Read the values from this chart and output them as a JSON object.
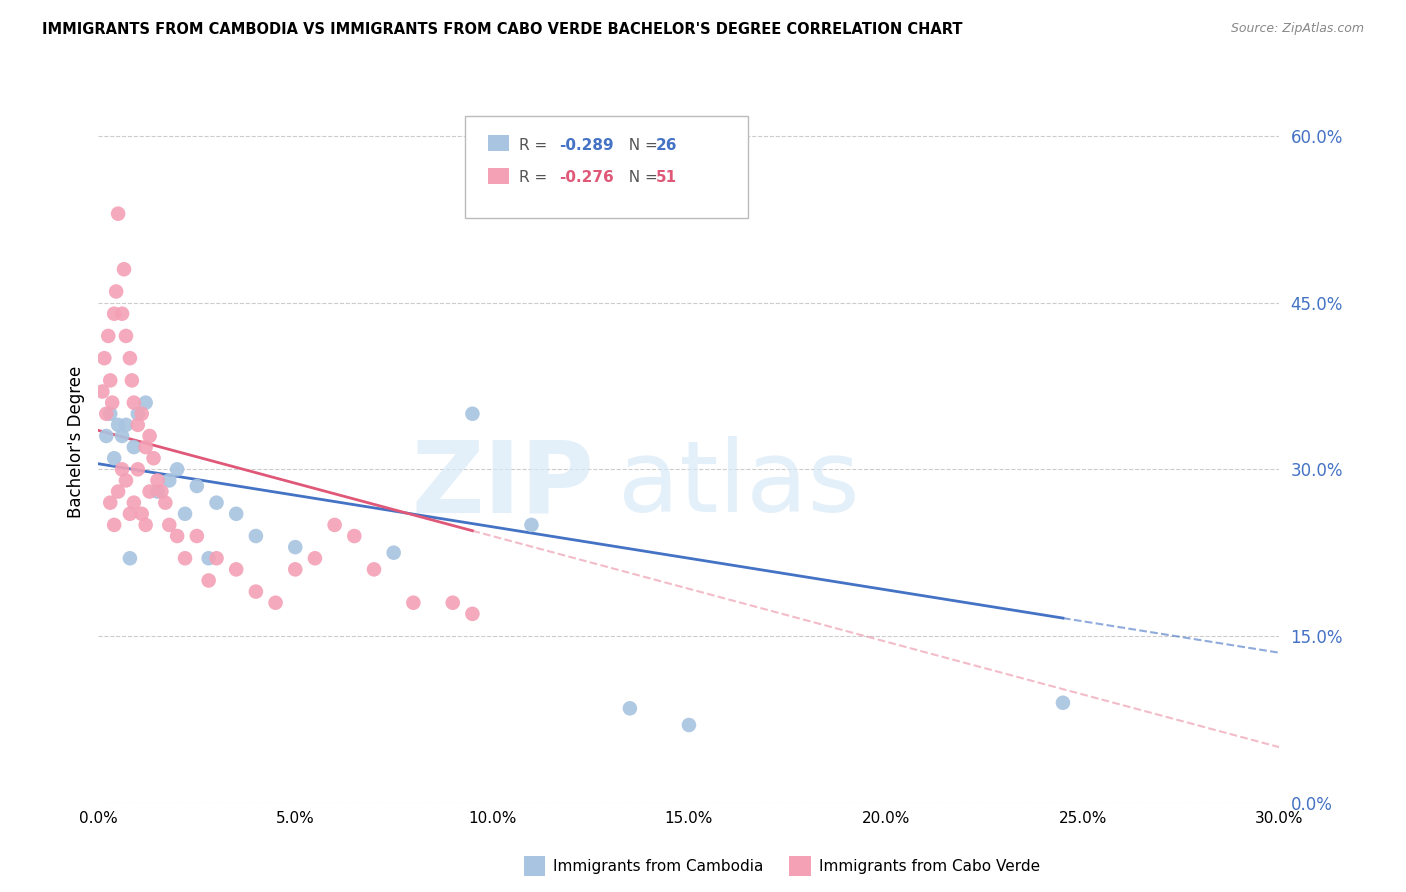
{
  "title": "IMMIGRANTS FROM CAMBODIA VS IMMIGRANTS FROM CABO VERDE BACHELOR'S DEGREE CORRELATION CHART",
  "source": "Source: ZipAtlas.com",
  "ylabel": "Bachelor's Degree",
  "x_tick_values": [
    0.0,
    5.0,
    10.0,
    15.0,
    20.0,
    25.0,
    30.0
  ],
  "y_tick_values": [
    0.0,
    15.0,
    30.0,
    45.0,
    60.0
  ],
  "y_tick_labels": [
    "0.0%",
    "15.0%",
    "30.0%",
    "45.0%",
    "60.0%"
  ],
  "xlim": [
    0.0,
    30.0
  ],
  "ylim": [
    0.0,
    65.0
  ],
  "legend_blue_label": "Immigrants from Cambodia",
  "legend_pink_label": "Immigrants from Cabo Verde",
  "legend_blue_R": "-0.289",
  "legend_blue_N": "26",
  "legend_pink_R": "-0.276",
  "legend_pink_N": "51",
  "blue_color": "#a8c4e0",
  "pink_color": "#f4a0b5",
  "blue_line_color": "#4472c4",
  "pink_line_color": "#e05878",
  "blue_scatter_x": [
    0.2,
    0.3,
    0.4,
    0.5,
    0.6,
    0.7,
    0.9,
    1.0,
    1.2,
    1.5,
    1.8,
    2.0,
    2.2,
    2.5,
    3.0,
    3.5,
    4.0,
    5.0,
    7.5,
    9.5,
    11.0,
    13.5,
    15.0,
    24.5,
    0.8,
    2.8
  ],
  "blue_scatter_y": [
    33.0,
    35.0,
    31.0,
    34.0,
    33.0,
    34.0,
    32.0,
    35.0,
    36.0,
    28.0,
    29.0,
    30.0,
    26.0,
    28.5,
    27.0,
    26.0,
    24.0,
    23.0,
    22.5,
    35.0,
    25.0,
    8.5,
    7.0,
    9.0,
    22.0,
    22.0
  ],
  "pink_scatter_x": [
    0.1,
    0.15,
    0.2,
    0.25,
    0.3,
    0.35,
    0.4,
    0.45,
    0.5,
    0.6,
    0.65,
    0.7,
    0.8,
    0.85,
    0.9,
    1.0,
    1.1,
    1.2,
    1.3,
    1.4,
    1.5,
    1.6,
    1.7,
    1.8,
    2.0,
    2.2,
    2.5,
    2.8,
    3.0,
    3.5,
    4.0,
    4.5,
    5.0,
    5.5,
    6.0,
    6.5,
    7.0,
    8.0,
    9.0,
    9.5,
    0.3,
    0.4,
    0.5,
    0.6,
    0.7,
    0.8,
    0.9,
    1.0,
    1.1,
    1.2,
    1.3
  ],
  "pink_scatter_y": [
    37.0,
    40.0,
    35.0,
    42.0,
    38.0,
    36.0,
    44.0,
    46.0,
    53.0,
    44.0,
    48.0,
    42.0,
    40.0,
    38.0,
    36.0,
    34.0,
    35.0,
    32.0,
    33.0,
    31.0,
    29.0,
    28.0,
    27.0,
    25.0,
    24.0,
    22.0,
    24.0,
    20.0,
    22.0,
    21.0,
    19.0,
    18.0,
    21.0,
    22.0,
    25.0,
    24.0,
    21.0,
    18.0,
    18.0,
    17.0,
    27.0,
    25.0,
    28.0,
    30.0,
    29.0,
    26.0,
    27.0,
    30.0,
    26.0,
    25.0,
    28.0
  ],
  "blue_line_x0": 0.0,
  "blue_line_y0": 30.5,
  "blue_line_x1": 30.0,
  "blue_line_y1": 13.5,
  "blue_solid_end": 24.5,
  "pink_line_x0": 0.0,
  "pink_line_y0": 33.5,
  "pink_line_x1": 30.0,
  "pink_line_y1": 5.0,
  "pink_solid_end": 9.5
}
